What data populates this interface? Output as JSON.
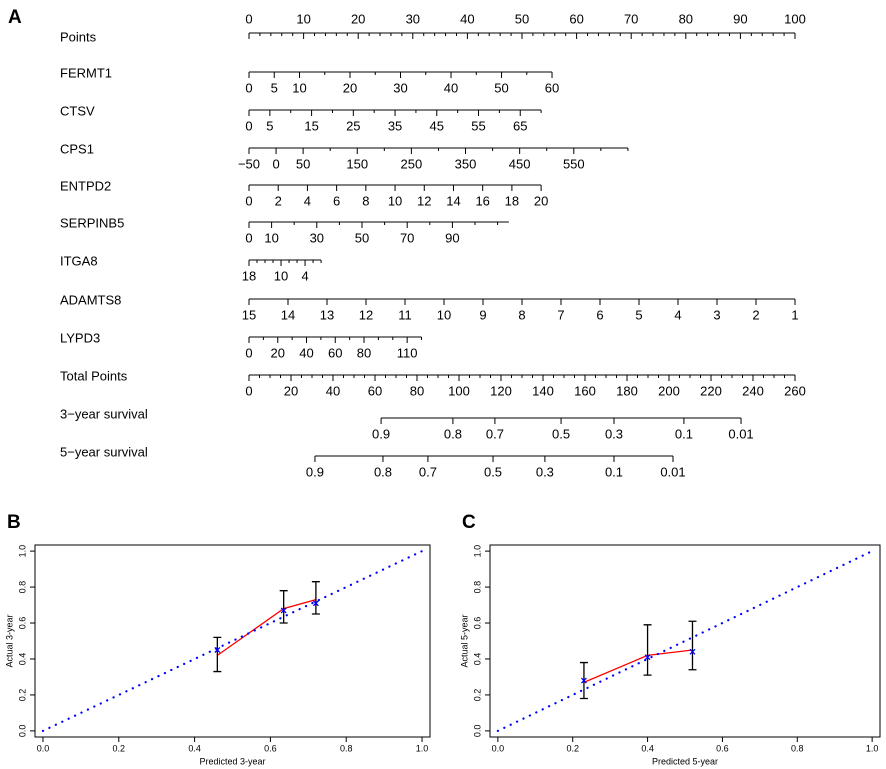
{
  "chart_data": [
    {
      "type": "nomogram",
      "panel": "A",
      "rows": [
        {
          "name": "Points",
          "lim": [
            0,
            100
          ],
          "points": [
            0,
            100
          ],
          "labels_above": true,
          "ticks": [
            0,
            10,
            20,
            30,
            40,
            50,
            60,
            70,
            80,
            90,
            100
          ],
          "minor_ticks": [
            2,
            4,
            6,
            8,
            12,
            14,
            16,
            18,
            22,
            24,
            26,
            28,
            32,
            34,
            36,
            38,
            42,
            44,
            46,
            48,
            52,
            54,
            56,
            58,
            62,
            64,
            66,
            68,
            72,
            74,
            76,
            78,
            82,
            84,
            86,
            88,
            92,
            94,
            96,
            98
          ]
        },
        {
          "name": "FERMT1",
          "lim": [
            0,
            60
          ],
          "points": [
            0,
            55.5
          ],
          "ticks": [
            0,
            5,
            10,
            20,
            30,
            40,
            50,
            60
          ],
          "minor_ticks": [
            15,
            25,
            35,
            45,
            55
          ]
        },
        {
          "name": "CTSV",
          "lim": [
            0,
            70
          ],
          "points": [
            0,
            53.5
          ],
          "ticks": [
            0,
            5,
            15,
            25,
            35,
            45,
            55,
            65
          ],
          "minor_ticks": [
            10,
            20,
            30,
            40,
            50,
            60,
            70
          ]
        },
        {
          "name": "CPS1",
          "lim": [
            -50,
            650
          ],
          "points": [
            0,
            69.4
          ],
          "ticks": [
            {
              "value": -50,
              "label": "−50"
            },
            0,
            50,
            150,
            250,
            350,
            450,
            550
          ],
          "minor_ticks": [
            100,
            200,
            300,
            400,
            500,
            600,
            650
          ]
        },
        {
          "name": "ENTPD2",
          "lim": [
            0,
            20
          ],
          "points": [
            0,
            53.5
          ],
          "ticks": [
            0,
            2,
            4,
            6,
            8,
            10,
            12,
            14,
            16,
            18,
            20
          ],
          "minor_ticks": []
        },
        {
          "name": "SERPINB5",
          "lim": [
            0,
            115
          ],
          "points": [
            0,
            47.6
          ],
          "ticks": [
            0,
            10,
            30,
            50,
            70,
            90
          ],
          "minor_ticks": [
            20,
            40,
            60,
            80,
            100,
            110
          ]
        },
        {
          "name": "ITGA8",
          "lim": [
            18,
            0
          ],
          "points": [
            0,
            13.2
          ],
          "ticks": [
            18,
            10,
            4
          ],
          "minor_ticks": [
            16,
            14,
            12,
            8,
            6,
            2,
            0
          ]
        },
        {
          "name": "ADAMTS8",
          "lim": [
            15,
            1
          ],
          "points": [
            0,
            100
          ],
          "ticks": [
            15,
            14,
            13,
            12,
            11,
            10,
            9,
            8,
            7,
            6,
            5,
            4,
            3,
            2,
            1
          ],
          "minor_ticks": []
        },
        {
          "name": "LYPD3",
          "lim": [
            0,
            120
          ],
          "points": [
            0,
            31.6
          ],
          "ticks": [
            0,
            20,
            40,
            60,
            80,
            110
          ],
          "minor_ticks": [
            10,
            30,
            50,
            70,
            90,
            100,
            120
          ]
        },
        {
          "name": "Total Points",
          "total": true,
          "lim": [
            0,
            260
          ],
          "points": [
            0,
            100
          ],
          "ticks": [
            0,
            20,
            40,
            60,
            80,
            100,
            120,
            140,
            160,
            180,
            200,
            220,
            240,
            260
          ],
          "minor_ticks": [
            5,
            10,
            15,
            25,
            30,
            35,
            45,
            50,
            55,
            65,
            70,
            75,
            85,
            90,
            95,
            105,
            110,
            115,
            125,
            130,
            135,
            145,
            150,
            155,
            165,
            170,
            175,
            185,
            190,
            195,
            205,
            210,
            215,
            225,
            230,
            235,
            245,
            250,
            255
          ]
        },
        {
          "name": "3−year survival",
          "ticks": [
            0.9,
            0.8,
            0.7,
            0.5,
            0.3,
            0.1,
            0.01
          ],
          "tick_points": [
            62.9,
            97.1,
            117.1,
            148.6,
            173.8,
            207.1,
            234.3
          ]
        },
        {
          "name": "5−year survival",
          "ticks": [
            0.9,
            0.8,
            0.7,
            0.5,
            0.3,
            0.1,
            0.01
          ],
          "tick_points": [
            31.4,
            63.8,
            85.2,
            116.2,
            140.9,
            173.8,
            201.9
          ]
        }
      ]
    },
    {
      "type": "calibration",
      "panel": "B",
      "x_label": "Predicted 3-year",
      "y_label": "Actual 3-year",
      "xlim": [
        -0.021,
        1.021
      ],
      "ylim": [
        -0.034,
        1.034
      ],
      "xticks": [
        {
          "value": 0,
          "label": "0.0"
        },
        0.2,
        0.4,
        0.6,
        0.8,
        {
          "value": 1,
          "label": "1.0"
        }
      ],
      "yticks": [
        {
          "value": 0,
          "label": "0.0"
        },
        0.2,
        0.4,
        0.6,
        0.8,
        {
          "value": 1,
          "label": "1.0"
        }
      ],
      "series": [
        {
          "color": "#ff0000",
          "x": [
            0.46,
            0.635,
            0.72
          ],
          "values": [
            0.42,
            0.68,
            0.73
          ],
          "lower": [
            0.33,
            0.6,
            0.65
          ],
          "upper": [
            0.52,
            0.78,
            0.83
          ]
        },
        {
          "color": "#0000ff",
          "marker": "x",
          "x": [
            0.46,
            0.635,
            0.72
          ],
          "values": [
            0.45,
            0.67,
            0.71
          ]
        },
        {
          "color": "#0000ff",
          "style": "dotted",
          "x": [
            0,
            1
          ],
          "values": [
            0,
            1
          ]
        }
      ]
    },
    {
      "type": "calibration",
      "panel": "C",
      "x_label": "Predicted 5-year",
      "y_label": "Actual 5-year",
      "xlim": [
        -0.021,
        1.021
      ],
      "ylim": [
        -0.034,
        1.034
      ],
      "xticks": [
        {
          "value": 0,
          "label": "0.0"
        },
        0.2,
        0.4,
        0.6,
        0.8,
        {
          "value": 1,
          "label": "1.0"
        }
      ],
      "yticks": [
        {
          "value": 0,
          "label": "0.0"
        },
        0.2,
        0.4,
        0.6,
        0.8,
        {
          "value": 1,
          "label": "1.0"
        }
      ],
      "series": [
        {
          "color": "#ff0000",
          "x": [
            0.23,
            0.4,
            0.52
          ],
          "values": [
            0.27,
            0.42,
            0.45
          ],
          "lower": [
            0.18,
            0.31,
            0.34
          ],
          "upper": [
            0.38,
            0.59,
            0.61
          ]
        },
        {
          "color": "#0000ff",
          "marker": "x",
          "x": [
            0.23,
            0.4,
            0.52
          ],
          "values": [
            0.28,
            0.41,
            0.44
          ]
        },
        {
          "color": "#0000ff",
          "style": "dotted",
          "x": [
            0,
            1
          ],
          "values": [
            0,
            1
          ]
        }
      ]
    }
  ]
}
